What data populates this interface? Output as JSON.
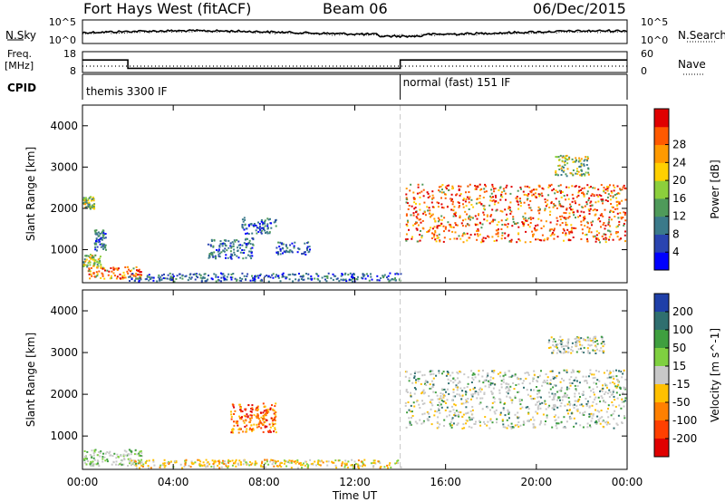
{
  "header": {
    "station": "Fort Hays West (fitACF)",
    "beam": "Beam 06",
    "date": "06/Dec/2015"
  },
  "top_labels": {
    "nsky": "N.Sky",
    "nsearch": "N.Search",
    "freq_line1": "Freq.",
    "freq_line2": "[MHz]",
    "nave": "Nave",
    "cpid": "CPID",
    "noise_ticks_left": [
      "10^5",
      "10^0"
    ],
    "noise_ticks_right": [
      "10^5",
      "10^0"
    ],
    "freq_ticks_left": [
      "18",
      "8"
    ],
    "freq_ticks_right": [
      "60",
      "0"
    ],
    "cpid_segments": [
      "themis 3300 IF",
      "normal (fast) 151 IF"
    ]
  },
  "axes": {
    "ylabel": "Slant Range [km]",
    "xlabel": "Time UT",
    "x_ticks": [
      "00:00",
      "04:00",
      "08:00",
      "12:00",
      "16:00",
      "20:00",
      "00:00"
    ],
    "y_ticks": [
      "1000",
      "2000",
      "3000",
      "4000"
    ]
  },
  "colorbars": {
    "power": {
      "label": "Power [dB]",
      "ticks": [
        "4",
        "8",
        "12",
        "16",
        "20",
        "24",
        "28"
      ],
      "colors": [
        "#0000ff",
        "#2a44b0",
        "#3b7a8a",
        "#4f9a5a",
        "#8ccf3c",
        "#ffd000",
        "#ff9a00",
        "#ff5a00",
        "#e00000"
      ]
    },
    "velocity": {
      "label": "Velocity [m s^-1]",
      "ticks": [
        "200",
        "100",
        "50",
        "15",
        "-15",
        "-50",
        "-100",
        "-200"
      ],
      "colors": [
        "#1f3fa8",
        "#2f6f6f",
        "#3f9f3f",
        "#7fd040",
        "#c8c8c8",
        "#ffc000",
        "#ff8000",
        "#ff4000",
        "#e00000"
      ]
    }
  },
  "chart_data": {
    "type": "heatmap",
    "title": "Fort Hays West (fitACF)",
    "xlabel": "Time UT",
    "ylabel": "Slant Range [km]",
    "xlim": [
      0,
      24
    ],
    "ylim": [
      200,
      4500
    ],
    "mode_change_hour": 14,
    "frequency_mhz": {
      "segments": [
        {
          "start": 0,
          "end": 2,
          "value": 14
        },
        {
          "start": 2,
          "end": 14,
          "value": 10
        },
        {
          "start": 14,
          "end": 24,
          "value": 14
        }
      ]
    },
    "power_clusters": [
      {
        "t": [
          0.2,
          2.6
        ],
        "r": [
          300,
          600
        ],
        "level": "high"
      },
      {
        "t": [
          0.0,
          0.8
        ],
        "r": [
          600,
          900
        ],
        "level": "mid"
      },
      {
        "t": [
          0.0,
          0.5
        ],
        "r": [
          2000,
          2300
        ],
        "level": "mid"
      },
      {
        "t": [
          0.5,
          1.0
        ],
        "r": [
          1000,
          1500
        ],
        "level": "low"
      },
      {
        "t": [
          2.0,
          14.0
        ],
        "r": [
          250,
          450
        ],
        "level": "low"
      },
      {
        "t": [
          5.5,
          7.5
        ],
        "r": [
          800,
          1300
        ],
        "level": "low"
      },
      {
        "t": [
          7.0,
          8.5
        ],
        "r": [
          1400,
          1800
        ],
        "level": "low"
      },
      {
        "t": [
          8.5,
          10.0
        ],
        "r": [
          900,
          1200
        ],
        "level": "low"
      },
      {
        "t": [
          14.2,
          23.9
        ],
        "r": [
          1200,
          2600
        ],
        "level": "high"
      },
      {
        "t": [
          20.8,
          22.3
        ],
        "r": [
          2800,
          3300
        ],
        "level": "mid"
      }
    ],
    "velocity_clusters": [
      {
        "t": [
          0.0,
          2.6
        ],
        "r": [
          300,
          700
        ],
        "velocity": "low"
      },
      {
        "t": [
          2.0,
          14.0
        ],
        "r": [
          250,
          450
        ],
        "velocity": "negative"
      },
      {
        "t": [
          6.5,
          8.5
        ],
        "r": [
          1100,
          1800
        ],
        "velocity": "strong-negative"
      },
      {
        "t": [
          14.2,
          23.9
        ],
        "r": [
          1200,
          2600
        ],
        "velocity": "near-zero"
      },
      {
        "t": [
          20.5,
          23.0
        ],
        "r": [
          3000,
          3400
        ],
        "velocity": "near-zero"
      }
    ]
  }
}
